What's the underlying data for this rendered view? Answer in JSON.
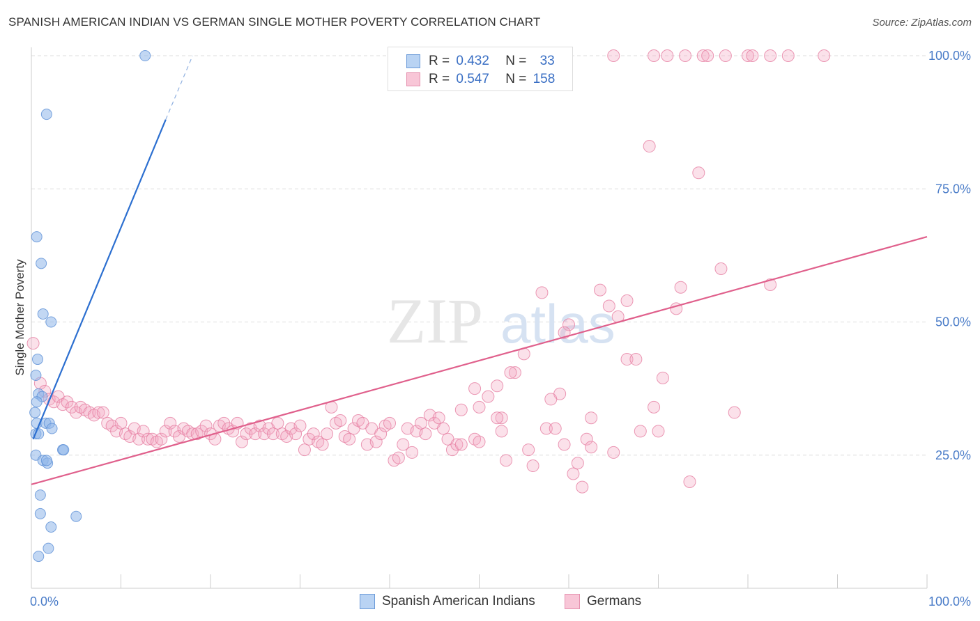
{
  "title": "SPANISH AMERICAN INDIAN VS GERMAN SINGLE MOTHER POVERTY CORRELATION CHART",
  "source": "Source: ZipAtlas.com",
  "watermark": {
    "zip": "ZIP",
    "atlas": "atlas"
  },
  "legend_top": {
    "r_label": "R =",
    "n_label": "N =",
    "rows": [
      {
        "r": "0.432",
        "n": "33",
        "color": "#a8c8f0",
        "border": "#5b8fd6"
      },
      {
        "r": "0.547",
        "n": "158",
        "color": "#f6bcd0",
        "border": "#e67fa3"
      }
    ]
  },
  "legend_bottom": [
    {
      "label": "Spanish American Indians",
      "color": "#b9d3f3",
      "border": "#6b9ad8"
    },
    {
      "label": "Germans",
      "color": "#f8c6d7",
      "border": "#e590ae"
    }
  ],
  "chart_data": {
    "type": "scatter",
    "title": "SPANISH AMERICAN INDIAN VS GERMAN SINGLE MOTHER POVERTY CORRELATION CHART",
    "xlabel": "",
    "ylabel": "Single Mother Poverty",
    "xlim": [
      0,
      100
    ],
    "ylim": [
      0,
      103
    ],
    "x_tick_labels": [
      "0.0%",
      "100.0%"
    ],
    "y_tick_values": [
      25,
      50,
      75,
      100
    ],
    "y_tick_labels": [
      "25.0%",
      "50.0%",
      "75.0%",
      "100.0%"
    ],
    "grid": true,
    "legend_position": "bottom",
    "series": [
      {
        "name": "Spanish American Indians",
        "color": "#8fb6ea",
        "stroke": "#5b8fd6",
        "trend": {
          "x": [
            0.2,
            15
          ],
          "y": [
            28,
            88
          ]
        },
        "trend_dashed": {
          "x": [
            15,
            18
          ],
          "y": [
            88,
            100
          ]
        },
        "points": [
          [
            12.7,
            100
          ],
          [
            1.7,
            89
          ],
          [
            0.6,
            66
          ],
          [
            1.1,
            61
          ],
          [
            1.3,
            51.5
          ],
          [
            2.2,
            50
          ],
          [
            0.7,
            43
          ],
          [
            0.5,
            40
          ],
          [
            0.8,
            36.5
          ],
          [
            1.2,
            36
          ],
          [
            0.6,
            35
          ],
          [
            0.4,
            33
          ],
          [
            0.6,
            31
          ],
          [
            1.6,
            31
          ],
          [
            2,
            31
          ],
          [
            2.3,
            30
          ],
          [
            0.5,
            29
          ],
          [
            0.8,
            29
          ],
          [
            3.5,
            26
          ],
          [
            3.6,
            26
          ],
          [
            0.5,
            25
          ],
          [
            1.3,
            24
          ],
          [
            1.8,
            23.5
          ],
          [
            1.7,
            24
          ],
          [
            1,
            17.5
          ],
          [
            1,
            14
          ],
          [
            2.2,
            11.5
          ],
          [
            5,
            13.5
          ],
          [
            1.9,
            7.5
          ],
          [
            0.8,
            6
          ]
        ]
      },
      {
        "name": "Germans",
        "color": "#f4a9c2",
        "stroke": "#e67fa3",
        "trend": {
          "x": [
            0,
            100
          ],
          "y": [
            19.5,
            66
          ]
        },
        "points": [
          [
            65,
            100
          ],
          [
            69.5,
            100
          ],
          [
            71,
            100
          ],
          [
            73,
            100
          ],
          [
            75,
            100
          ],
          [
            75.5,
            100
          ],
          [
            77.5,
            100
          ],
          [
            80,
            100
          ],
          [
            80.5,
            100
          ],
          [
            82.5,
            100
          ],
          [
            84.5,
            100
          ],
          [
            88.5,
            100
          ],
          [
            69,
            83
          ],
          [
            74.5,
            78
          ],
          [
            77,
            60
          ],
          [
            82.5,
            57
          ],
          [
            57,
            55.5
          ],
          [
            63.5,
            56
          ],
          [
            66.5,
            54
          ],
          [
            72.5,
            56.5
          ],
          [
            64.5,
            53
          ],
          [
            72,
            52.5
          ],
          [
            65.5,
            51
          ],
          [
            60,
            49.5
          ],
          [
            59.5,
            48
          ],
          [
            55,
            44
          ],
          [
            66.5,
            43
          ],
          [
            67.5,
            43
          ],
          [
            54,
            40.5
          ],
          [
            53.5,
            40.5
          ],
          [
            70.5,
            39.5
          ],
          [
            49.5,
            37.5
          ],
          [
            52,
            38
          ],
          [
            51,
            36
          ],
          [
            59,
            36.5
          ],
          [
            58,
            35.5
          ],
          [
            50,
            34
          ],
          [
            69.5,
            34
          ],
          [
            78.5,
            33
          ],
          [
            48,
            33.5
          ],
          [
            62.5,
            32
          ],
          [
            52.5,
            32
          ],
          [
            0.2,
            46
          ],
          [
            1,
            38.5
          ],
          [
            1.5,
            37
          ],
          [
            2,
            35.5
          ],
          [
            2.5,
            35
          ],
          [
            3,
            36
          ],
          [
            3.5,
            34.5
          ],
          [
            4,
            35
          ],
          [
            4.5,
            34
          ],
          [
            5,
            33
          ],
          [
            5.5,
            34
          ],
          [
            6,
            33.5
          ],
          [
            6.5,
            33
          ],
          [
            7,
            32.5
          ],
          [
            7.5,
            33
          ],
          [
            8,
            33
          ],
          [
            8.5,
            31
          ],
          [
            9,
            30.5
          ],
          [
            9.5,
            29.5
          ],
          [
            10,
            31
          ],
          [
            10.5,
            29
          ],
          [
            11,
            28.5
          ],
          [
            11.5,
            30
          ],
          [
            12,
            28
          ],
          [
            12.5,
            29.5
          ],
          [
            13,
            28
          ],
          [
            13.5,
            28
          ],
          [
            14,
            27.5
          ],
          [
            14.5,
            28
          ],
          [
            15,
            29.5
          ],
          [
            15.5,
            31
          ],
          [
            16,
            29.5
          ],
          [
            16.5,
            28.5
          ],
          [
            17,
            30
          ],
          [
            17.5,
            29.5
          ],
          [
            18,
            29
          ],
          [
            18.5,
            29
          ],
          [
            19,
            29.5
          ],
          [
            19.5,
            30.5
          ],
          [
            20,
            29
          ],
          [
            20.5,
            28
          ],
          [
            21,
            30.5
          ],
          [
            21.5,
            31
          ],
          [
            22,
            30
          ],
          [
            22.5,
            29.5
          ],
          [
            23,
            31
          ],
          [
            23.5,
            27.5
          ],
          [
            24,
            29
          ],
          [
            24.5,
            30
          ],
          [
            25,
            29
          ],
          [
            25.5,
            30.5
          ],
          [
            26,
            29
          ],
          [
            26.5,
            30
          ],
          [
            27,
            29
          ],
          [
            27.5,
            31
          ],
          [
            28,
            29
          ],
          [
            28.5,
            28.5
          ],
          [
            29,
            30
          ],
          [
            29.5,
            29
          ],
          [
            30,
            30.5
          ],
          [
            30.5,
            26
          ],
          [
            31,
            28
          ],
          [
            31.5,
            29
          ],
          [
            32,
            27.5
          ],
          [
            32.5,
            27
          ],
          [
            33,
            29
          ],
          [
            33.5,
            34
          ],
          [
            34,
            31
          ],
          [
            34.5,
            31.5
          ],
          [
            35,
            28.5
          ],
          [
            35.5,
            28
          ],
          [
            36,
            30
          ],
          [
            36.5,
            31.5
          ],
          [
            37,
            31
          ],
          [
            37.5,
            27
          ],
          [
            38,
            30
          ],
          [
            38.5,
            27.5
          ],
          [
            39,
            29
          ],
          [
            39.5,
            30.5
          ],
          [
            40,
            31
          ],
          [
            40.5,
            24
          ],
          [
            41,
            24.5
          ],
          [
            41.5,
            27
          ],
          [
            42,
            30
          ],
          [
            42.5,
            25.5
          ],
          [
            43,
            29.5
          ],
          [
            43.5,
            31
          ],
          [
            44,
            29
          ],
          [
            44.5,
            32.5
          ],
          [
            45,
            31
          ],
          [
            45.5,
            32
          ],
          [
            46,
            30
          ],
          [
            46.5,
            28
          ],
          [
            47,
            26
          ],
          [
            47.5,
            27
          ],
          [
            48,
            27
          ],
          [
            49.5,
            28
          ],
          [
            50,
            27.5
          ],
          [
            52,
            32
          ],
          [
            52.5,
            29.5
          ],
          [
            53,
            24
          ],
          [
            55.5,
            26
          ],
          [
            56,
            23
          ],
          [
            57.5,
            30
          ],
          [
            58.5,
            30
          ],
          [
            59.5,
            27
          ],
          [
            60.5,
            21.5
          ],
          [
            61,
            23.5
          ],
          [
            61.5,
            19
          ],
          [
            62,
            28
          ],
          [
            62.5,
            26.5
          ],
          [
            65,
            25.5
          ],
          [
            68,
            29.5
          ],
          [
            70,
            29.5
          ],
          [
            73.5,
            20
          ]
        ]
      }
    ]
  }
}
